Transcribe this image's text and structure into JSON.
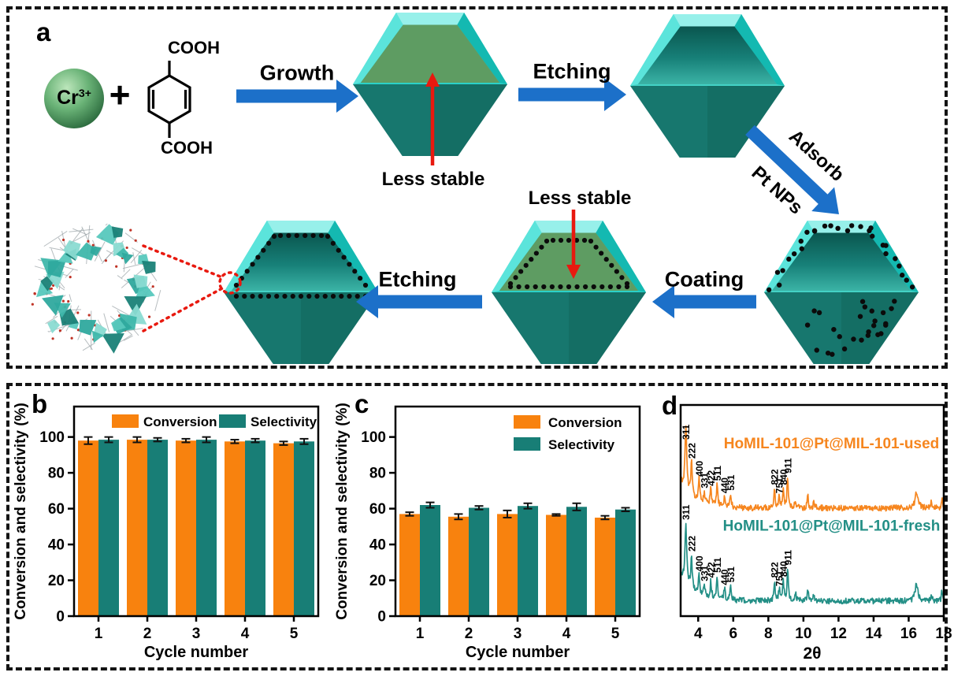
{
  "panel_a": {
    "label": "a",
    "ion": {
      "element": "Cr",
      "charge": "3+"
    },
    "plus_sign": "+",
    "linker": {
      "top_group": "COOH",
      "bottom_group": "COOH"
    },
    "steps": {
      "growth": "Growth",
      "etching_top": "Etching",
      "adsorb_line1": "Adsorb",
      "adsorb_line2": "Pt NPs",
      "coating": "Coating",
      "etching_bottom": "Etching"
    },
    "annotations": {
      "less_stable_top": "Less stable",
      "less_stable_bottom": "Less stable"
    },
    "colors": {
      "shell_cyan": "#2BD1C8",
      "core_green": "#5E9C62",
      "body_teal": "#17776E",
      "arrow_blue": "#1C70C9",
      "annotation_red": "#E8190F",
      "pt_dot_black": "#0B0B0B",
      "ion_green": "#4E9A5C"
    }
  },
  "chart_data": [
    {
      "id": "b",
      "panel_label": "b",
      "type": "bar",
      "xlabel": "Cycle number",
      "ylabel": "Conversion and selectivity (%)",
      "categories": [
        "1",
        "2",
        "3",
        "4",
        "5"
      ],
      "ylim": [
        0,
        117
      ],
      "yticks": [
        0,
        20,
        40,
        60,
        80,
        100
      ],
      "legend": {
        "layout": "horizontal",
        "position": "top-center"
      },
      "series": [
        {
          "name": "Conversion",
          "color": "#F8820E",
          "values": [
            98,
            98.5,
            98,
            97.5,
            96.5
          ],
          "errors": [
            2,
            1.5,
            1,
            1,
            1
          ]
        },
        {
          "name": "Selectivity",
          "color": "#187E76",
          "values": [
            98.5,
            98.5,
            98.5,
            98,
            97.5
          ],
          "errors": [
            1.5,
            1,
            1.5,
            1,
            1.5
          ]
        }
      ]
    },
    {
      "id": "c",
      "panel_label": "c",
      "type": "bar",
      "xlabel": "Cycle number",
      "ylabel": "Conversion and selectivity (%)",
      "categories": [
        "1",
        "2",
        "3",
        "4",
        "5"
      ],
      "ylim": [
        0,
        117
      ],
      "yticks": [
        0,
        20,
        40,
        60,
        80,
        100
      ],
      "legend": {
        "layout": "vertical",
        "position": "top-right"
      },
      "series": [
        {
          "name": "Conversion",
          "color": "#F8820E",
          "values": [
            57,
            55.5,
            57,
            56.5,
            55
          ],
          "errors": [
            1,
            1.5,
            2,
            0.5,
            1
          ]
        },
        {
          "name": "Selectivity",
          "color": "#187E76",
          "values": [
            62,
            60.5,
            61.5,
            61,
            59.5
          ],
          "errors": [
            1.5,
            1,
            1.5,
            2,
            1
          ]
        }
      ]
    },
    {
      "id": "d",
      "panel_label": "d",
      "type": "line",
      "xlabel": "2θ",
      "xlim": [
        3,
        18
      ],
      "xticks": [
        4,
        6,
        8,
        10,
        12,
        14,
        16,
        18
      ],
      "series": [
        {
          "name": "HoMIL-101@Pt@MIL-101-used",
          "color": "#F6861F",
          "baseline_offset": 0.5,
          "peaks": [
            {
              "hkl": "311",
              "x": 3.3,
              "h": 0.3
            },
            {
              "hkl": "222",
              "x": 3.62,
              "h": 0.16
            },
            {
              "hkl": "400",
              "x": 4.05,
              "h": 0.1
            },
            {
              "hkl": "331",
              "x": 4.35,
              "h": 0.055
            },
            {
              "hkl": "422",
              "x": 4.72,
              "h": 0.075
            },
            {
              "hkl": "511",
              "x": 5.08,
              "h": 0.105
            },
            {
              "hkl": "440",
              "x": 5.5,
              "h": 0.05
            },
            {
              "hkl": "531",
              "x": 5.85,
              "h": 0.065
            },
            {
              "hkl": "822",
              "x": 8.35,
              "h": 0.095
            },
            {
              "hkl": "751",
              "x": 8.62,
              "h": 0.055
            },
            {
              "hkl": "840",
              "x": 8.85,
              "h": 0.095
            },
            {
              "hkl": "911",
              "x": 9.1,
              "h": 0.15
            }
          ],
          "minor_peaks": [
            {
              "x": 9.55,
              "h": 0.04
            },
            {
              "x": 10.25,
              "h": 0.055
            },
            {
              "x": 10.6,
              "h": 0.03
            },
            {
              "x": 16.45,
              "h": 0.075,
              "w": 0.1
            },
            {
              "x": 17.3,
              "h": 0.03
            },
            {
              "x": 17.9,
              "h": 0.045
            }
          ]
        },
        {
          "name": "HoMIL-101@Pt@MIL-101-fresh",
          "color": "#238F86",
          "baseline_offset": 0.06,
          "peaks": [
            {
              "hkl": "311",
              "x": 3.3,
              "h": 0.28
            },
            {
              "hkl": "222",
              "x": 3.62,
              "h": 0.16
            },
            {
              "hkl": "400",
              "x": 4.05,
              "h": 0.09
            },
            {
              "hkl": "331",
              "x": 4.35,
              "h": 0.055
            },
            {
              "hkl": "422",
              "x": 4.72,
              "h": 0.08
            },
            {
              "hkl": "511",
              "x": 5.08,
              "h": 0.11
            },
            {
              "hkl": "440",
              "x": 5.5,
              "h": 0.055
            },
            {
              "hkl": "531",
              "x": 5.85,
              "h": 0.07
            },
            {
              "hkl": "822",
              "x": 8.35,
              "h": 0.095
            },
            {
              "hkl": "751",
              "x": 8.62,
              "h": 0.055
            },
            {
              "hkl": "840",
              "x": 8.85,
              "h": 0.1
            },
            {
              "hkl": "911",
              "x": 9.1,
              "h": 0.155
            }
          ],
          "minor_peaks": [
            {
              "x": 9.55,
              "h": 0.04
            },
            {
              "x": 10.25,
              "h": 0.055
            },
            {
              "x": 10.6,
              "h": 0.03
            },
            {
              "x": 16.45,
              "h": 0.08,
              "w": 0.1
            },
            {
              "x": 17.3,
              "h": 0.03
            },
            {
              "x": 17.9,
              "h": 0.045
            }
          ]
        }
      ]
    }
  ]
}
